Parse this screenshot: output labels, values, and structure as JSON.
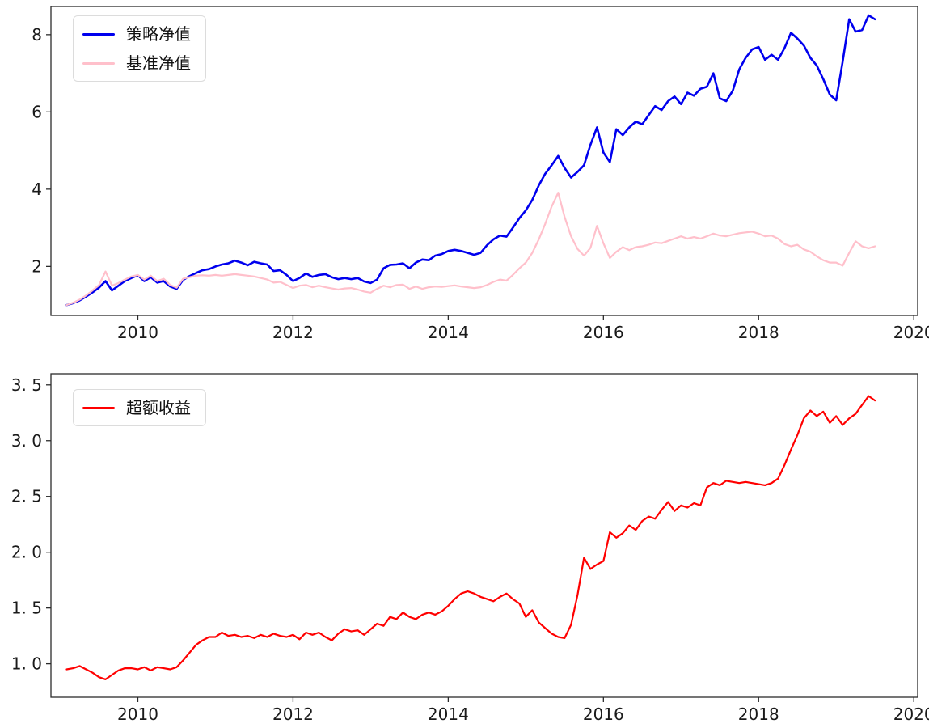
{
  "figure": {
    "background": "#ffffff"
  },
  "style": {
    "axis_color": "#2b2b2b",
    "text_color": "#1a1a1a",
    "legend_border": "#dcdcdc",
    "legend_bg": "#ffffff",
    "strategy_color": "#0000ee",
    "benchmark_color": "#ffc0cb",
    "excess_color": "#ff0000"
  },
  "chart_data": {
    "type": "line",
    "x_label_note": "decimal years, monthly points",
    "x_years": [
      2009.083,
      2009.167,
      2009.25,
      2009.333,
      2009.417,
      2009.5,
      2009.583,
      2009.667,
      2009.75,
      2009.833,
      2009.917,
      2010.0,
      2010.083,
      2010.167,
      2010.25,
      2010.333,
      2010.417,
      2010.5,
      2010.583,
      2010.667,
      2010.75,
      2010.833,
      2010.917,
      2011.0,
      2011.083,
      2011.167,
      2011.25,
      2011.333,
      2011.417,
      2011.5,
      2011.583,
      2011.667,
      2011.75,
      2011.833,
      2011.917,
      2012.0,
      2012.083,
      2012.167,
      2012.25,
      2012.333,
      2012.417,
      2012.5,
      2012.583,
      2012.667,
      2012.75,
      2012.833,
      2012.917,
      2013.0,
      2013.083,
      2013.167,
      2013.25,
      2013.333,
      2013.417,
      2013.5,
      2013.583,
      2013.667,
      2013.75,
      2013.833,
      2013.917,
      2014.0,
      2014.083,
      2014.167,
      2014.25,
      2014.333,
      2014.417,
      2014.5,
      2014.583,
      2014.667,
      2014.75,
      2014.833,
      2014.917,
      2015.0,
      2015.083,
      2015.167,
      2015.25,
      2015.333,
      2015.417,
      2015.5,
      2015.583,
      2015.667,
      2015.75,
      2015.833,
      2015.917,
      2016.0,
      2016.083,
      2016.167,
      2016.25,
      2016.333,
      2016.417,
      2016.5,
      2016.583,
      2016.667,
      2016.75,
      2016.833,
      2016.917,
      2017.0,
      2017.083,
      2017.167,
      2017.25,
      2017.333,
      2017.417,
      2017.5,
      2017.583,
      2017.667,
      2017.75,
      2017.833,
      2017.917,
      2018.0,
      2018.083,
      2018.167,
      2018.25,
      2018.333,
      2018.417,
      2018.5,
      2018.583,
      2018.667,
      2018.75,
      2018.833,
      2018.917,
      2019.0,
      2019.083,
      2019.167,
      2019.25,
      2019.333,
      2019.417,
      2019.5
    ],
    "charts": [
      {
        "id": "net-value-chart",
        "legend_position": "upper-left",
        "grid": false,
        "xlim": [
          2008.88,
          2020.05
        ],
        "ylim": [
          0.73,
          8.73
        ],
        "xtick_values": [
          2010,
          2012,
          2014,
          2016,
          2018,
          2020
        ],
        "xtick_labels": [
          "2010",
          "2012",
          "2014",
          "2016",
          "2018",
          "2020"
        ],
        "ytick_values": [
          2,
          4,
          6,
          8
        ],
        "ytick_labels": [
          "2",
          "4",
          "6",
          "8"
        ],
        "series": [
          {
            "id": "strategy-net-line",
            "name": "策略净值",
            "color": "#0000ee",
            "line_width": 2.6,
            "values": [
              1.0,
              1.05,
              1.12,
              1.22,
              1.33,
              1.45,
              1.62,
              1.38,
              1.5,
              1.62,
              1.7,
              1.77,
              1.62,
              1.72,
              1.58,
              1.62,
              1.48,
              1.42,
              1.65,
              1.75,
              1.83,
              1.9,
              1.93,
              2.0,
              2.05,
              2.08,
              2.15,
              2.1,
              2.03,
              2.12,
              2.08,
              2.05,
              1.88,
              1.9,
              1.78,
              1.62,
              1.7,
              1.82,
              1.73,
              1.78,
              1.8,
              1.72,
              1.67,
              1.7,
              1.67,
              1.7,
              1.61,
              1.57,
              1.66,
              1.95,
              2.04,
              2.05,
              2.08,
              1.95,
              2.1,
              2.18,
              2.16,
              2.28,
              2.32,
              2.4,
              2.43,
              2.4,
              2.35,
              2.3,
              2.35,
              2.55,
              2.7,
              2.8,
              2.77,
              3.0,
              3.25,
              3.45,
              3.72,
              4.1,
              4.4,
              4.62,
              4.86,
              4.55,
              4.3,
              4.45,
              4.62,
              5.15,
              5.6,
              4.95,
              4.7,
              5.55,
              5.4,
              5.6,
              5.75,
              5.68,
              5.92,
              6.15,
              6.05,
              6.28,
              6.4,
              6.2,
              6.5,
              6.42,
              6.6,
              6.65,
              7.0,
              6.35,
              6.28,
              6.55,
              7.1,
              7.4,
              7.62,
              7.68,
              7.35,
              7.48,
              7.35,
              7.65,
              8.05,
              7.9,
              7.72,
              7.4,
              7.2,
              6.85,
              6.45,
              6.3,
              7.3,
              8.4,
              8.08,
              8.12,
              8.5,
              8.4
            ]
          },
          {
            "id": "benchmark-net-line",
            "name": "基准净值",
            "color": "#ffc0cb",
            "line_width": 2.2,
            "values": [
              1.0,
              1.06,
              1.14,
              1.25,
              1.38,
              1.52,
              1.87,
              1.5,
              1.57,
              1.66,
              1.74,
              1.78,
              1.66,
              1.76,
              1.62,
              1.68,
              1.52,
              1.45,
              1.68,
              1.72,
              1.76,
              1.77,
              1.76,
              1.78,
              1.76,
              1.78,
              1.8,
              1.78,
              1.76,
              1.74,
              1.7,
              1.66,
              1.58,
              1.6,
              1.52,
              1.44,
              1.5,
              1.52,
              1.46,
              1.5,
              1.46,
              1.43,
              1.4,
              1.43,
              1.44,
              1.4,
              1.35,
              1.32,
              1.42,
              1.5,
              1.46,
              1.52,
              1.53,
              1.42,
              1.48,
              1.42,
              1.46,
              1.48,
              1.47,
              1.49,
              1.51,
              1.48,
              1.46,
              1.44,
              1.46,
              1.52,
              1.6,
              1.66,
              1.63,
              1.78,
              1.95,
              2.1,
              2.35,
              2.7,
              3.1,
              3.55,
              3.91,
              3.28,
              2.78,
              2.45,
              2.28,
              2.48,
              3.05,
              2.6,
              2.22,
              2.38,
              2.5,
              2.42,
              2.5,
              2.52,
              2.56,
              2.62,
              2.6,
              2.66,
              2.72,
              2.78,
              2.72,
              2.76,
              2.72,
              2.78,
              2.85,
              2.8,
              2.78,
              2.82,
              2.86,
              2.88,
              2.9,
              2.85,
              2.78,
              2.8,
              2.72,
              2.58,
              2.52,
              2.56,
              2.44,
              2.38,
              2.26,
              2.16,
              2.1,
              2.1,
              2.02,
              2.35,
              2.65,
              2.52,
              2.47,
              2.52
            ]
          }
        ]
      },
      {
        "id": "excess-return-chart",
        "legend_position": "upper-left",
        "grid": false,
        "xlim": [
          2008.88,
          2020.05
        ],
        "ylim": [
          0.7,
          3.6
        ],
        "xtick_values": [
          2010,
          2012,
          2014,
          2016,
          2018,
          2020
        ],
        "xtick_labels": [
          "2010",
          "2012",
          "2014",
          "2016",
          "2018",
          "2020"
        ],
        "ytick_values": [
          1.0,
          1.5,
          2.0,
          2.5,
          3.0,
          3.5
        ],
        "ytick_labels": [
          "1. 0",
          "1. 5",
          "2. 0",
          "2. 5",
          "3. 0",
          "3. 5"
        ],
        "series": [
          {
            "id": "excess-return-line",
            "name": "超额收益",
            "color": "#ff0000",
            "line_width": 2.2,
            "values": [
              0.95,
              0.96,
              0.98,
              0.95,
              0.92,
              0.88,
              0.86,
              0.9,
              0.94,
              0.96,
              0.96,
              0.95,
              0.97,
              0.94,
              0.97,
              0.96,
              0.95,
              0.97,
              1.03,
              1.1,
              1.17,
              1.21,
              1.24,
              1.24,
              1.28,
              1.25,
              1.26,
              1.24,
              1.25,
              1.23,
              1.26,
              1.24,
              1.27,
              1.25,
              1.24,
              1.26,
              1.22,
              1.28,
              1.26,
              1.28,
              1.24,
              1.21,
              1.27,
              1.31,
              1.29,
              1.3,
              1.26,
              1.31,
              1.36,
              1.34,
              1.42,
              1.4,
              1.46,
              1.42,
              1.4,
              1.44,
              1.46,
              1.44,
              1.47,
              1.52,
              1.58,
              1.63,
              1.65,
              1.63,
              1.6,
              1.58,
              1.56,
              1.6,
              1.63,
              1.58,
              1.54,
              1.42,
              1.48,
              1.37,
              1.32,
              1.27,
              1.24,
              1.23,
              1.35,
              1.62,
              1.95,
              1.85,
              1.89,
              1.92,
              2.18,
              2.13,
              2.17,
              2.24,
              2.2,
              2.28,
              2.32,
              2.3,
              2.38,
              2.45,
              2.37,
              2.42,
              2.4,
              2.44,
              2.42,
              2.58,
              2.62,
              2.6,
              2.64,
              2.63,
              2.62,
              2.63,
              2.62,
              2.61,
              2.6,
              2.62,
              2.66,
              2.78,
              2.92,
              3.05,
              3.2,
              3.27,
              3.22,
              3.26,
              3.16,
              3.22,
              3.14,
              3.2,
              3.24,
              3.32,
              3.4,
              3.36
            ]
          }
        ]
      }
    ]
  }
}
